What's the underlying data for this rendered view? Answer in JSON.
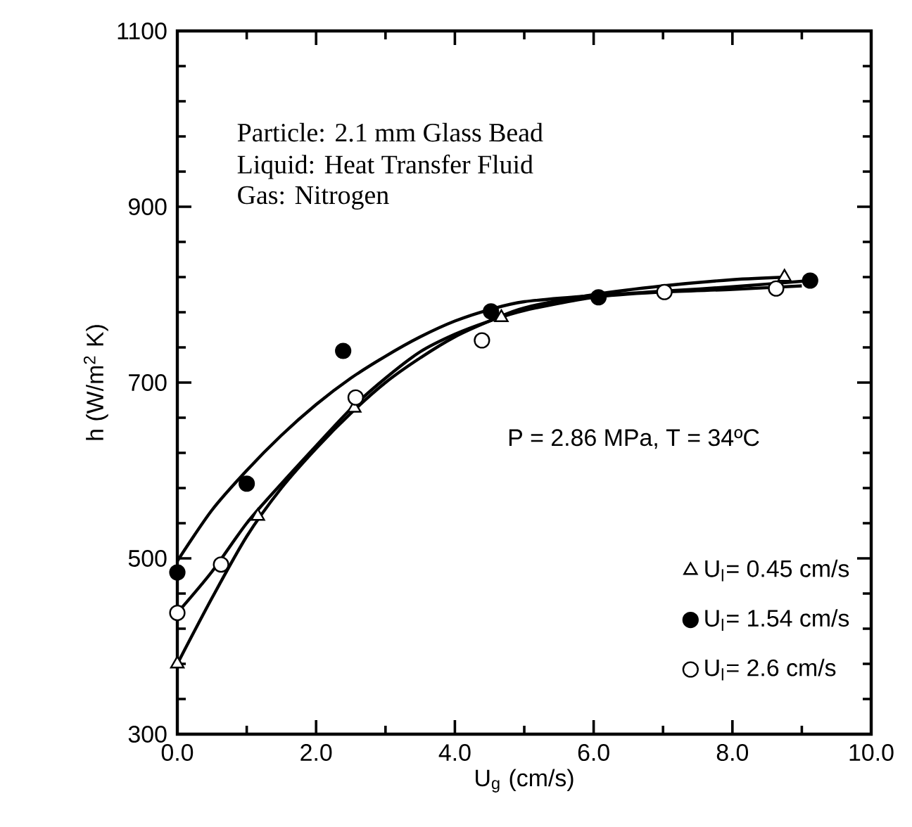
{
  "chart_data": {
    "type": "scatter",
    "xlabel": "U$_{g}$ (cm/s)",
    "ylabel": "h (W/m$^{2}$ K)",
    "xlim": [
      0,
      10
    ],
    "ylim": [
      300,
      1100
    ],
    "xticks": [
      {
        "value": 0,
        "label": "0.0"
      },
      {
        "value": 2,
        "label": "2.0"
      },
      {
        "value": 4,
        "label": "4.0"
      },
      {
        "value": 6,
        "label": "6.0"
      },
      {
        "value": 8,
        "label": "8.0"
      },
      {
        "value": 10,
        "label": "10.0"
      }
    ],
    "yticks": [
      300,
      500,
      700,
      900,
      1100
    ],
    "grid": false,
    "legend": "bottom right",
    "line_style": "solid",
    "annotations": [
      "Particle:  2.1 mm Glass Bead",
      "Liquid:    Heat Transfer Fluid",
      "Gas:        Nitrogen",
      "P = 2.86 MPa,   T = 34ºC"
    ],
    "series": [
      {
        "name": "U$_{l}$= 0.45 cm/s",
        "color": "#ffffff",
        "marker": "triangle",
        "x": [
          0,
          1.16,
          2.55,
          4.67,
          8.75
        ],
        "values": [
          380,
          548,
          671,
          774,
          820
        ]
      },
      {
        "name": "U$_{l}$= 1.54 cm/s",
        "color": "#000000",
        "marker": "circle",
        "x": [
          0,
          1.0,
          2.39,
          4.52,
          6.07,
          9.12
        ],
        "values": [
          484,
          585,
          736,
          781,
          797,
          816
        ]
      },
      {
        "name": "U$_{l}$= 2.6 cm/s",
        "color": "#ffffff",
        "marker": "circle",
        "x": [
          0,
          0.63,
          2.57,
          4.39,
          7.02,
          8.63
        ],
        "values": [
          438,
          493,
          683,
          748,
          803,
          807
        ]
      },
      {
        "type": "line",
        "color": "#000000",
        "marker": "none",
        "x": [
          0,
          0.5,
          1,
          1.5,
          2,
          2.5,
          3,
          3.5,
          4,
          4.5,
          5,
          6,
          7,
          8,
          8.8
        ],
        "values": [
          380,
          455,
          525,
          580,
          625,
          665,
          700,
          728,
          752,
          770,
          785,
          800,
          810,
          817,
          820
        ]
      },
      {
        "type": "line",
        "color": "#000000",
        "marker": "none",
        "x": [
          0,
          0.5,
          1,
          1.5,
          2,
          2.5,
          3,
          3.5,
          4,
          4.5,
          5,
          6,
          7,
          8,
          9.12
        ],
        "values": [
          497,
          555,
          600,
          640,
          675,
          705,
          730,
          752,
          770,
          783,
          792,
          799,
          804,
          809,
          816
        ]
      },
      {
        "type": "line",
        "color": "#000000",
        "marker": "none",
        "x": [
          0,
          0.5,
          1,
          1.5,
          2,
          2.5,
          3,
          3.5,
          4,
          4.5,
          5,
          6,
          7,
          8,
          9
        ],
        "values": [
          438,
          485,
          540,
          585,
          628,
          670,
          705,
          735,
          755,
          770,
          782,
          797,
          803,
          806,
          810
        ]
      }
    ]
  }
}
